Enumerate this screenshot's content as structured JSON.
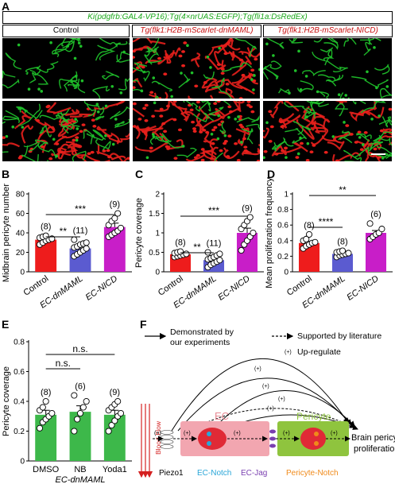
{
  "panels": {
    "A": "A",
    "B": "B",
    "C": "C",
    "D": "D",
    "E": "E",
    "F": "F"
  },
  "panel_a": {
    "genotype": "Ki(pdgfrb:GAL4-VP16);Tg(4×nrUAS:EGFP);Tg(fli1a:DsRedEx)",
    "columns": [
      "Control",
      "Tg(flk1:H2B-mScarlet-dnMAML)",
      "Tg(flk1:H2B-mScarlet-NICD)"
    ],
    "colors": {
      "green": "#1fbf2a",
      "red": "#e8201c",
      "genotype_text": "#1aa81a",
      "tg_text": "#c81010"
    }
  },
  "chart_data": [
    {
      "panel": "B",
      "type": "bar",
      "ylabel": "Midbrain pericyte number",
      "categories": [
        "Control",
        "EC-dnMAML",
        "EC-NICD"
      ],
      "values": [
        33,
        24,
        46
      ],
      "errors": [
        2,
        3,
        4
      ],
      "n_labels": [
        "(8)",
        "(11)",
        "(9)"
      ],
      "colors": [
        "#ee1c1c",
        "#5b5bd0",
        "#c81ec8"
      ],
      "ylim": [
        0,
        80
      ],
      "yticks": [
        0,
        20,
        40,
        60,
        80
      ],
      "points": [
        [
          28,
          30,
          32,
          33,
          34,
          35,
          36,
          37
        ],
        [
          16,
          18,
          20,
          22,
          24,
          25,
          26,
          28,
          29,
          30,
          33
        ],
        [
          36,
          38,
          40,
          42,
          45,
          48,
          52,
          55,
          60
        ]
      ],
      "sig": [
        {
          "from": 0,
          "to": 1,
          "label": "**"
        },
        {
          "from": 0,
          "to": 2,
          "label": "***"
        }
      ]
    },
    {
      "panel": "C",
      "type": "bar",
      "ylabel": "Pericyte coverage",
      "categories": [
        "Control",
        "EC-dnMAML",
        "EC-NICD"
      ],
      "values": [
        0.45,
        0.3,
        1.0
      ],
      "errors": [
        0.03,
        0.05,
        0.12
      ],
      "n_labels": [
        "(8)",
        "(11)",
        "(9)"
      ],
      "colors": [
        "#ee1c1c",
        "#5b5bd0",
        "#c81ec8"
      ],
      "ylim": [
        0,
        2.0
      ],
      "yticks": [
        0,
        0.5,
        1.0,
        1.5,
        2.0
      ],
      "points": [
        [
          0.38,
          0.4,
          0.42,
          0.44,
          0.46,
          0.48,
          0.5,
          0.52
        ],
        [
          0.12,
          0.18,
          0.22,
          0.26,
          0.3,
          0.32,
          0.35,
          0.38,
          0.42,
          0.46,
          0.5
        ],
        [
          0.55,
          0.7,
          0.8,
          0.9,
          1.0,
          1.1,
          1.2,
          1.3,
          1.4
        ]
      ],
      "sig": [
        {
          "from": 0,
          "to": 1,
          "label": "**"
        },
        {
          "from": 0,
          "to": 2,
          "label": "***"
        }
      ]
    },
    {
      "panel": "D",
      "type": "bar",
      "ylabel": "Mean proliferation frequency",
      "categories": [
        "Control",
        "EC-dnMAML",
        "EC-NICD"
      ],
      "values": [
        0.37,
        0.23,
        0.5
      ],
      "errors": [
        0.02,
        0.015,
        0.03
      ],
      "n_labels": [
        "(8)",
        "(8)",
        "(6)"
      ],
      "colors": [
        "#ee1c1c",
        "#5b5bd0",
        "#c81ec8"
      ],
      "ylim": [
        0,
        1.0
      ],
      "yticks": [
        0,
        0.2,
        0.4,
        0.6,
        0.8,
        1.0
      ],
      "points": [
        [
          0.3,
          0.33,
          0.35,
          0.37,
          0.38,
          0.4,
          0.42,
          0.48
        ],
        [
          0.19,
          0.21,
          0.22,
          0.23,
          0.24,
          0.25,
          0.26,
          0.27
        ],
        [
          0.42,
          0.45,
          0.48,
          0.5,
          0.55,
          0.62
        ]
      ],
      "sig": [
        {
          "from": 0,
          "to": 1,
          "label": "****"
        },
        {
          "from": 0,
          "to": 2,
          "label": "**"
        }
      ]
    },
    {
      "panel": "E",
      "type": "bar",
      "ylabel": "Pericyte coverage",
      "group_label": "EC-dnMAML",
      "categories": [
        "DMSO",
        "NB",
        "Yoda1"
      ],
      "values": [
        0.31,
        0.33,
        0.31
      ],
      "errors": [
        0.03,
        0.04,
        0.03
      ],
      "n_labels": [
        "(8)",
        "(6)",
        "(9)"
      ],
      "colors": [
        "#3db84a",
        "#3db84a",
        "#3db84a"
      ],
      "ylim": [
        0,
        0.8
      ],
      "yticks": [
        0,
        0.2,
        0.4,
        0.6,
        0.8
      ],
      "points": [
        [
          0.22,
          0.26,
          0.28,
          0.3,
          0.32,
          0.34,
          0.36,
          0.4
        ],
        [
          0.2,
          0.28,
          0.32,
          0.36,
          0.4,
          0.44
        ],
        [
          0.2,
          0.24,
          0.27,
          0.3,
          0.32,
          0.34,
          0.36,
          0.38,
          0.4
        ]
      ],
      "sig": [
        {
          "from": 0,
          "to": 1,
          "label": "n.s."
        },
        {
          "from": 0,
          "to": 2,
          "label": "n.s."
        }
      ]
    }
  ],
  "schematic": {
    "legend": {
      "demonstrated": "Demonstrated by our experiments",
      "literature": "Supported by literature",
      "upregulate": "Up-regulate",
      "plus": "(+)"
    },
    "blood_flow": "Blood Flow",
    "ec": "EC",
    "pericyte": "Pericyte",
    "output": "Brain pericyte proliferation",
    "piezo1": "Piezo1",
    "ec_notch": "EC-Notch",
    "ec_jag": "EC-Jag",
    "pericyte_notch": "Pericyte-Notch",
    "colors": {
      "red": "#d42020",
      "ec_box": "#f2a6b0",
      "pericyte_box": "#8fc43e",
      "nucleus": "#e02a36",
      "ec_text": "#e88a94",
      "notch": "#2aa6d8",
      "jag": "#7a3fb0",
      "pericyte_text": "#f08a1a",
      "pericyte_label": "#ffffff"
    }
  }
}
